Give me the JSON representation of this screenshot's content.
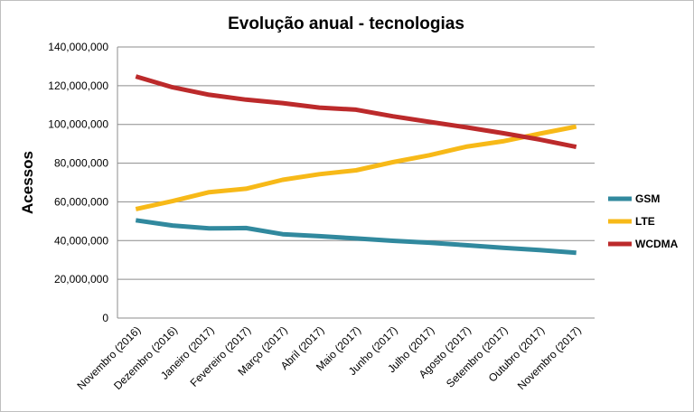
{
  "chart_data": {
    "type": "line",
    "title": "Evolução anual - tecnologias",
    "xlabel": "",
    "ylabel": "Acessos",
    "ylim": [
      0,
      140000000
    ],
    "yticks": [
      0,
      20000000,
      40000000,
      60000000,
      80000000,
      100000000,
      120000000,
      140000000
    ],
    "ytick_labels": [
      "0",
      "20,000,000",
      "40,000,000",
      "60,000,000",
      "80,000,000",
      "100,000,000",
      "120,000,000",
      "140,000,000"
    ],
    "grid": true,
    "legend": "right",
    "categories": [
      "Novembro (2016)",
      "Dezembro (2016)",
      "Janeiro (2017)",
      "Fevereiro (2017)",
      "Março (2017)",
      "Abril (2017)",
      "Maio (2017)",
      "Junho (2017)",
      "Julho (2017)",
      "Agosto (2017)",
      "Setembro (2017)",
      "Outubro (2017)",
      "Novembro (2017)"
    ],
    "series": [
      {
        "name": "GSM",
        "color": "#31899e",
        "values": [
          50500000,
          47800000,
          46300000,
          46500000,
          43300000,
          42300000,
          41100000,
          39900000,
          38900000,
          37600000,
          36300000,
          35100000,
          33700000
        ]
      },
      {
        "name": "LTE",
        "color": "#f7b918",
        "values": [
          56300000,
          60400000,
          65000000,
          66800000,
          71400000,
          74300000,
          76300000,
          80500000,
          84100000,
          88500000,
          91300000,
          95200000,
          98900000
        ]
      },
      {
        "name": "WCDMA",
        "color": "#bc2a2b",
        "values": [
          124800000,
          119200000,
          115300000,
          112800000,
          111000000,
          108700000,
          107600000,
          104200000,
          101300000,
          98500000,
          95500000,
          92200000,
          88400000
        ]
      }
    ]
  }
}
